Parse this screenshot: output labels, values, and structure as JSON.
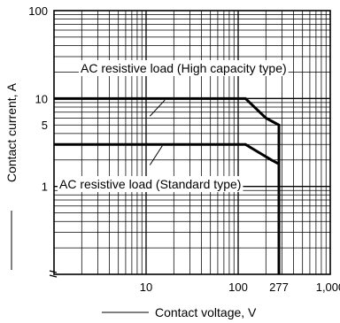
{
  "chart_data": {
    "type": "line",
    "title": "",
    "xlabel": "Contact voltage, V",
    "ylabel": "Contact current, A",
    "x_scale": "log",
    "y_scale": "log",
    "xlim": [
      1,
      1000
    ],
    "ylim": [
      0.1,
      100
    ],
    "grid": true,
    "x_ticks": [
      {
        "value": 10,
        "label": "10"
      },
      {
        "value": 100,
        "label": "100"
      },
      {
        "value": 277,
        "label": "277"
      },
      {
        "value": 1000,
        "label": "1,000"
      }
    ],
    "y_ticks": [
      {
        "value": 1,
        "label": "1"
      },
      {
        "value": 5,
        "label": "5"
      },
      {
        "value": 10,
        "label": "10"
      },
      {
        "value": 100,
        "label": "100"
      }
    ],
    "series": [
      {
        "name": "AC resistive load (High capacity type)",
        "points": [
          [
            1,
            10
          ],
          [
            120,
            10
          ],
          [
            200,
            6
          ],
          [
            277,
            5
          ],
          [
            277,
            0.1
          ]
        ]
      },
      {
        "name": "AC resistive load (Standard type)",
        "points": [
          [
            1,
            3
          ],
          [
            120,
            3
          ],
          [
            230,
            2
          ],
          [
            277,
            1.8
          ],
          [
            277,
            0.1
          ]
        ]
      }
    ]
  }
}
